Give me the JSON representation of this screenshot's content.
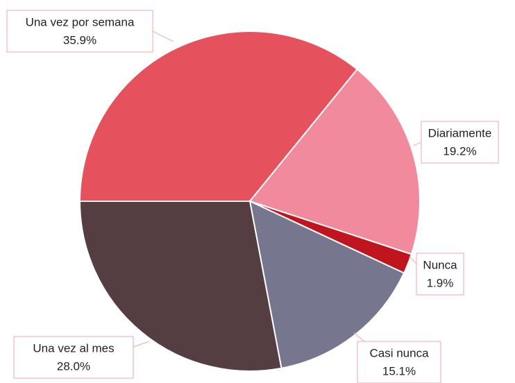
{
  "chart_data": {
    "type": "pie",
    "categories": [
      "Una vez por semana",
      "Diariamente",
      "Nunca",
      "Casi nunca",
      "Una vez al mes"
    ],
    "values": [
      35.9,
      19.2,
      1.9,
      15.1,
      28.0
    ],
    "value_labels": [
      "35.9%",
      "19.2%",
      "1.9%",
      "15.1%",
      "28.0%"
    ],
    "colors": [
      "#e5525e",
      "#f08a9c",
      "#c0141f",
      "#77768f",
      "#553e42"
    ]
  }
}
